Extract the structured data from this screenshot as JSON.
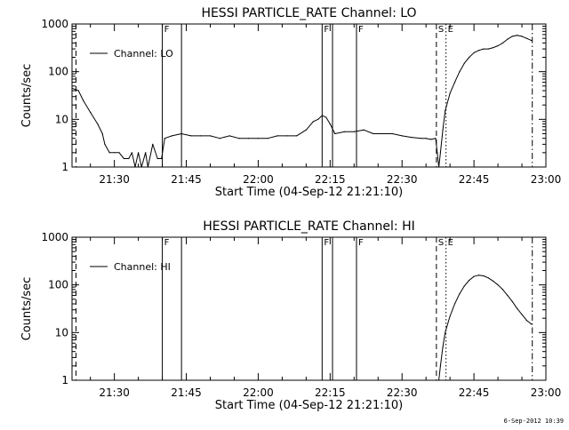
{
  "footer": {
    "timestamp": "6-Sep-2012 10:39"
  },
  "colors": {
    "foreground": "#000000",
    "background": "#ffffff"
  },
  "chart_data": [
    {
      "type": "line",
      "title": "HESSI PARTICLE_RATE Channel: LO",
      "xlabel": "Start Time (04-Sep-12 21:21:10)",
      "ylabel": "Counts/sec",
      "xlim": [
        "21:21:10",
        "23:00:00"
      ],
      "ylim": [
        1,
        1000
      ],
      "yscale": "log",
      "x_tick_labels": [
        "21:30",
        "21:45",
        "22:00",
        "22:15",
        "22:30",
        "22:45",
        "23:00"
      ],
      "y_tick_labels": [
        "1",
        "10",
        "100",
        "1000"
      ],
      "legend": {
        "label": "Channel: LO",
        "placement": "top-left"
      },
      "markers": [
        {
          "time": "21:40:00",
          "label": "F",
          "style": "solid"
        },
        {
          "time": "21:44:00",
          "label": "",
          "style": "solid"
        },
        {
          "time": "22:13:20",
          "label": "F",
          "style": "solid"
        },
        {
          "time": "22:15:30",
          "label": "",
          "style": "solid"
        },
        {
          "time": "22:20:30",
          "label": "F",
          "style": "solid"
        },
        {
          "time": "21:22:00",
          "label": "",
          "style": "dashed"
        },
        {
          "time": "22:37:10",
          "label": "S",
          "style": "dashed"
        },
        {
          "time": "22:39:10",
          "label": "E",
          "style": "dotted"
        },
        {
          "time": "22:57:10",
          "label": "",
          "style": "dashdot"
        }
      ],
      "series": [
        {
          "x": [
            "21:21:10",
            "21:22:30",
            "21:23:30",
            "21:25:00",
            "21:26:30",
            "21:27:30",
            "21:28:00",
            "21:29:00",
            "21:30:00",
            "21:31:00",
            "21:32:00",
            "21:33:00",
            "21:33:40",
            "21:34:20",
            "21:35:00",
            "21:35:40",
            "21:36:30",
            "21:37:00",
            "21:38:00",
            "21:39:00",
            "21:39:50",
            "21:40:30",
            "21:42:00",
            "21:44:00",
            "21:46:00",
            "21:48:00",
            "21:50:00",
            "21:52:00",
            "21:54:00",
            "21:56:00",
            "21:58:00",
            "22:00:00",
            "22:02:00",
            "22:04:00",
            "22:06:00",
            "22:08:00",
            "22:10:00",
            "22:11:30",
            "22:12:30",
            "22:13:20",
            "22:14:10",
            "22:15:00",
            "22:16:00",
            "22:18:00",
            "22:20:00",
            "22:22:00",
            "22:24:00",
            "22:26:00",
            "22:28:00",
            "22:30:00",
            "22:32:00",
            "22:34:00",
            "22:35:00",
            "22:36:00",
            "22:37:00",
            "22:37:20",
            "22:37:40",
            "22:38:00",
            "22:38:30",
            "22:39:00",
            "22:40:00",
            "22:41:00",
            "22:42:00",
            "22:43:00",
            "22:44:00",
            "22:45:00",
            "22:46:00",
            "22:47:00",
            "22:48:00",
            "22:49:00",
            "22:50:00",
            "22:51:00",
            "22:52:00",
            "22:53:00",
            "22:54:00",
            "22:55:00",
            "22:56:00",
            "22:57:00"
          ],
          "y": [
            45,
            40,
            25,
            14,
            8,
            5,
            3,
            2,
            2,
            2,
            1.5,
            1.5,
            2,
            1,
            2,
            1,
            2,
            1,
            3,
            1.5,
            1.5,
            4,
            4.5,
            5,
            4.5,
            4.5,
            4.5,
            4,
            4.5,
            4,
            4,
            4,
            4,
            4.5,
            4.5,
            4.5,
            6,
            9,
            10,
            12,
            11,
            8,
            5,
            5.5,
            5.5,
            6,
            5,
            5,
            5,
            4.5,
            4.2,
            4,
            4,
            3.8,
            4,
            2,
            1,
            2,
            6,
            15,
            35,
            60,
            100,
            150,
            200,
            250,
            280,
            300,
            300,
            320,
            350,
            400,
            480,
            550,
            580,
            550,
            500,
            450
          ]
        }
      ]
    },
    {
      "type": "line",
      "title": "HESSI PARTICLE_RATE Channel: HI",
      "xlabel": "Start Time (04-Sep-12 21:21:10)",
      "ylabel": "Counts/sec",
      "xlim": [
        "21:21:10",
        "23:00:00"
      ],
      "ylim": [
        1,
        1000
      ],
      "yscale": "log",
      "x_tick_labels": [
        "21:30",
        "21:45",
        "22:00",
        "22:15",
        "22:30",
        "22:45",
        "23:00"
      ],
      "y_tick_labels": [
        "1",
        "10",
        "100",
        "1000"
      ],
      "legend": {
        "label": "Channel: HI",
        "placement": "top-left"
      },
      "markers": [
        {
          "time": "21:40:00",
          "label": "F",
          "style": "solid"
        },
        {
          "time": "21:44:00",
          "label": "",
          "style": "solid"
        },
        {
          "time": "22:13:20",
          "label": "F",
          "style": "solid"
        },
        {
          "time": "22:15:30",
          "label": "",
          "style": "solid"
        },
        {
          "time": "22:20:30",
          "label": "F",
          "style": "solid"
        },
        {
          "time": "21:22:00",
          "label": "",
          "style": "dashed"
        },
        {
          "time": "22:37:10",
          "label": "S",
          "style": "dashed"
        },
        {
          "time": "22:39:10",
          "label": "E",
          "style": "dotted"
        },
        {
          "time": "22:57:10",
          "label": "",
          "style": "dashdot"
        }
      ],
      "series": [
        {
          "x": [
            "22:37:40",
            "22:38:00",
            "22:38:30",
            "22:39:00",
            "22:40:00",
            "22:41:00",
            "22:42:00",
            "22:43:00",
            "22:44:00",
            "22:45:00",
            "22:46:00",
            "22:47:00",
            "22:48:00",
            "22:49:00",
            "22:50:00",
            "22:51:00",
            "22:52:00",
            "22:53:00",
            "22:54:00",
            "22:55:00",
            "22:56:00",
            "22:57:00"
          ],
          "y": [
            1,
            2,
            5,
            10,
            22,
            40,
            65,
            95,
            125,
            150,
            160,
            155,
            140,
            120,
            100,
            80,
            60,
            45,
            32,
            24,
            18,
            15
          ]
        }
      ]
    }
  ]
}
